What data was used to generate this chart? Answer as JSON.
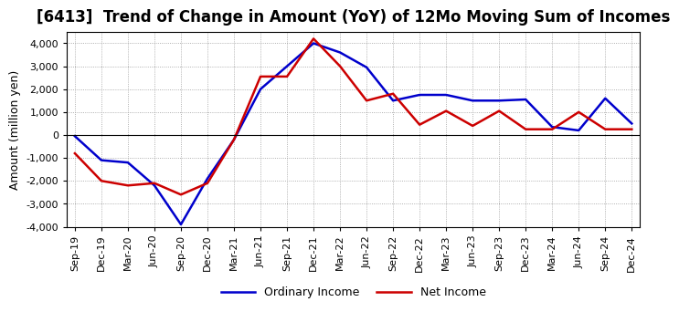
{
  "title": "[6413]  Trend of Change in Amount (YoY) of 12Mo Moving Sum of Incomes",
  "ylabel": "Amount (million yen)",
  "ylim": [
    -4000,
    4500
  ],
  "yticks": [
    -4000,
    -3000,
    -2000,
    -1000,
    0,
    1000,
    2000,
    3000,
    4000
  ],
  "x_labels": [
    "Sep-19",
    "Dec-19",
    "Mar-20",
    "Jun-20",
    "Sep-20",
    "Dec-20",
    "Mar-21",
    "Jun-21",
    "Sep-21",
    "Dec-21",
    "Mar-22",
    "Jun-22",
    "Sep-22",
    "Dec-22",
    "Mar-23",
    "Jun-23",
    "Sep-23",
    "Dec-23",
    "Mar-24",
    "Jun-24",
    "Sep-24",
    "Dec-24"
  ],
  "ordinary_income": [
    -50,
    -1100,
    -1200,
    -2200,
    -3900,
    -1900,
    -200,
    2000,
    3000,
    4000,
    3600,
    2950,
    1500,
    1750,
    1750,
    1500,
    1500,
    1550,
    350,
    200,
    1600,
    500
  ],
  "net_income": [
    -800,
    -2000,
    -2200,
    -2100,
    -2600,
    -2100,
    -200,
    2550,
    2550,
    4200,
    3000,
    1500,
    1800,
    450,
    1050,
    400,
    1050,
    250,
    250,
    1000,
    250,
    250
  ],
  "ordinary_color": "#0000CC",
  "net_color": "#CC0000",
  "grid_color": "#999999",
  "background_color": "#FFFFFF",
  "title_fontsize": 12,
  "axis_fontsize": 9,
  "tick_fontsize": 8,
  "legend_fontsize": 9
}
